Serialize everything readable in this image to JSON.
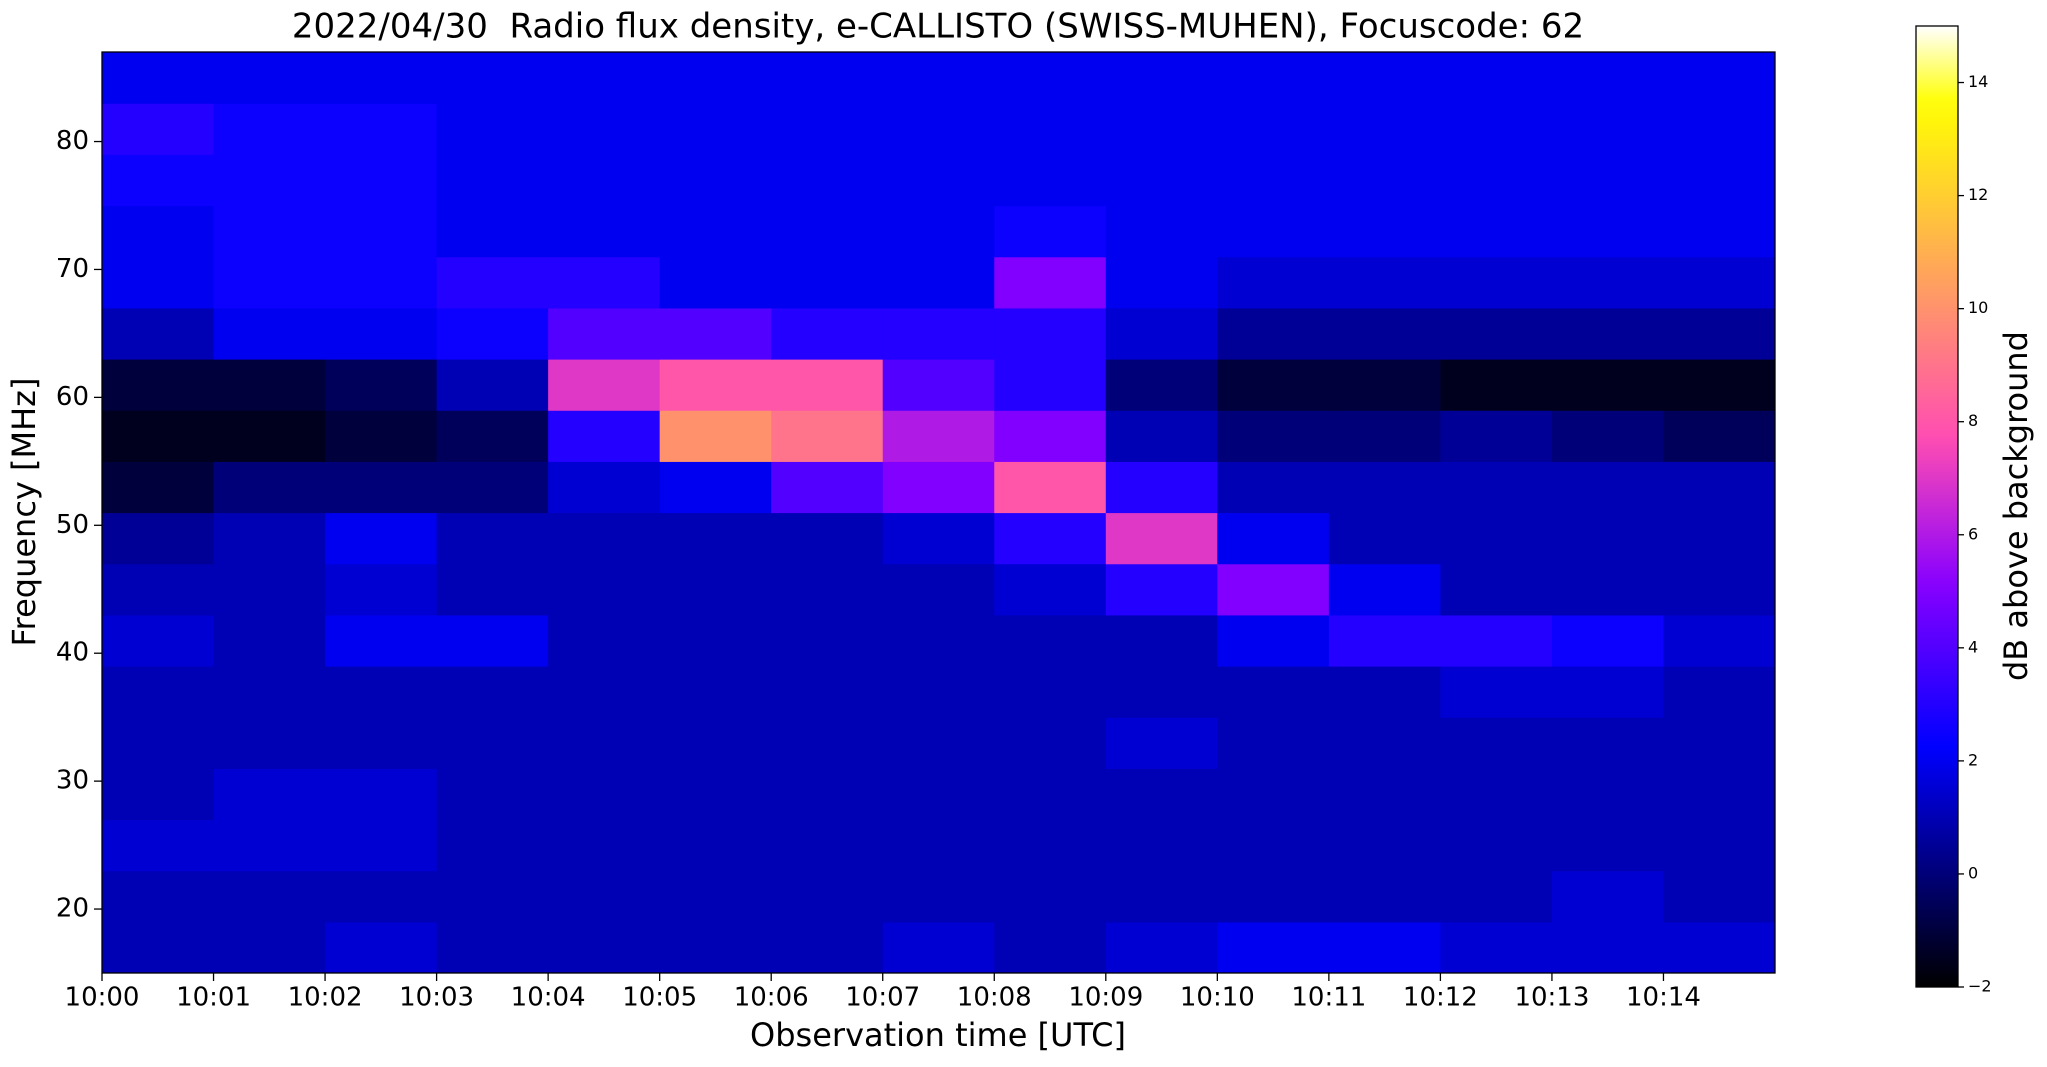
{
  "chart_data": {
    "type": "heatmap",
    "title": "2022/04/30  Radio flux density, e-CALLISTO (SWISS-MUHEN), Focuscode: 62",
    "x_label": "Observation time [UTC]",
    "y_label": "Frequency [MHz]",
    "colorbar_label": "dB above background",
    "colormap": "gnuplot2",
    "xlim": [
      0,
      15
    ],
    "ylim": [
      15,
      87
    ],
    "clim": [
      -2,
      15
    ],
    "xticks": [
      {
        "value": 0,
        "label": "10:00"
      },
      {
        "value": 1,
        "label": "10:01"
      },
      {
        "value": 2,
        "label": "10:02"
      },
      {
        "value": 3,
        "label": "10:03"
      },
      {
        "value": 4,
        "label": "10:04"
      },
      {
        "value": 5,
        "label": "10:05"
      },
      {
        "value": 6,
        "label": "10:06"
      },
      {
        "value": 7,
        "label": "10:07"
      },
      {
        "value": 8,
        "label": "10:08"
      },
      {
        "value": 9,
        "label": "10:09"
      },
      {
        "value": 10,
        "label": "10:10"
      },
      {
        "value": 11,
        "label": "10:11"
      },
      {
        "value": 12,
        "label": "10:12"
      },
      {
        "value": 13,
        "label": "10:13"
      },
      {
        "value": 14,
        "label": "10:14"
      }
    ],
    "yticks": [
      20,
      30,
      40,
      50,
      60,
      70,
      80
    ],
    "cticks": [
      {
        "value": -2,
        "label": "−2"
      },
      0,
      2,
      4,
      6,
      8,
      10,
      12,
      14
    ],
    "xbins": [
      0,
      1,
      2,
      3,
      4,
      5,
      6,
      7,
      8,
      9,
      10,
      11,
      12,
      13,
      14,
      15
    ],
    "ybins": [
      15,
      19,
      23,
      27,
      31,
      35,
      39,
      43,
      47,
      51,
      55,
      59,
      63,
      67,
      71,
      75,
      79,
      83,
      87
    ],
    "z": [
      [
        1,
        1,
        1.5,
        1,
        1,
        1,
        1,
        1.5,
        1,
        1.5,
        2,
        2,
        1.5,
        1.5,
        1.5
      ],
      [
        1,
        1,
        1,
        1,
        1,
        1,
        1,
        1,
        1,
        1,
        1,
        1,
        1,
        1.5,
        1
      ],
      [
        1.5,
        1.5,
        1.5,
        1,
        1,
        1,
        1,
        1,
        1,
        1,
        1,
        1,
        1,
        1,
        1
      ],
      [
        1,
        1.5,
        1.5,
        1,
        1,
        1,
        1,
        1,
        1,
        1,
        1,
        1,
        1,
        1,
        1
      ],
      [
        1,
        1,
        1,
        1,
        1,
        1,
        1,
        1,
        1,
        1.5,
        1,
        1,
        1,
        1,
        1
      ],
      [
        1,
        1,
        1,
        1,
        1,
        1,
        1,
        1,
        1,
        1,
        1,
        1,
        1.5,
        1.5,
        1
      ],
      [
        1.5,
        1,
        2,
        2,
        1,
        1,
        1,
        1,
        1,
        1,
        2,
        3,
        3,
        2.5,
        1.5
      ],
      [
        1,
        1,
        1.5,
        1,
        1,
        1,
        1,
        1,
        1.5,
        3,
        5,
        2,
        1,
        1,
        1
      ],
      [
        0.5,
        1,
        2,
        1,
        1,
        1,
        1,
        1.5,
        3,
        7,
        2,
        1,
        1,
        1,
        1
      ],
      [
        -1,
        0,
        0,
        0,
        1.5,
        2,
        4,
        5,
        8,
        3,
        1,
        1,
        1,
        1,
        1
      ],
      [
        -1.5,
        -1.5,
        -1,
        -0.5,
        3,
        10,
        9,
        6,
        5,
        1,
        0,
        0,
        0.5,
        0,
        -0.5
      ],
      [
        -1,
        -1,
        -0.5,
        1,
        7,
        8,
        8,
        4,
        3,
        0,
        -1,
        -1,
        -1.5,
        -1.5,
        -1.5
      ],
      [
        1,
        2,
        2,
        2.5,
        4,
        4,
        3,
        3,
        3,
        1.5,
        0.5,
        0.5,
        0.5,
        0.5,
        0.5
      ],
      [
        2,
        2.5,
        2.5,
        3,
        3,
        2,
        2,
        2,
        5,
        2,
        1.5,
        1.5,
        1.5,
        1.5,
        1.5
      ],
      [
        2,
        2.5,
        2.5,
        2,
        2,
        2,
        2,
        2,
        2.5,
        2,
        2,
        2,
        2,
        2,
        2
      ],
      [
        2.5,
        2.5,
        2.5,
        2,
        2,
        2,
        2,
        2,
        2,
        2,
        2,
        2,
        2,
        2,
        2
      ],
      [
        3,
        2.5,
        2.5,
        2,
        2,
        2,
        2,
        2,
        2,
        2,
        2,
        2,
        2,
        2,
        2
      ],
      [
        2,
        2,
        2,
        2,
        2,
        2,
        2,
        2,
        2,
        2,
        2,
        2,
        2,
        2,
        2
      ]
    ]
  }
}
